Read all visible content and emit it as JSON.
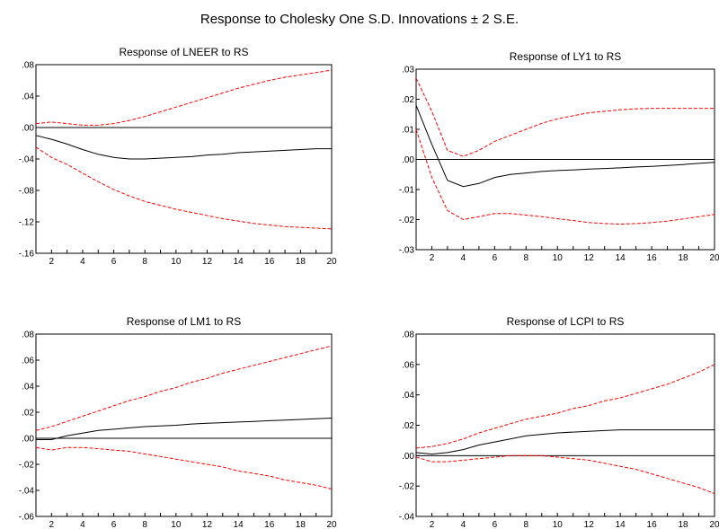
{
  "figure": {
    "title": "Response to Cholesky One S.D. Innovations ± 2 S.E."
  },
  "chart_data": [
    {
      "type": "line",
      "title": "Response of LNEER to RS",
      "xlabel": "",
      "ylabel": "",
      "xlim": [
        1,
        20
      ],
      "ylim": [
        -0.16,
        0.08
      ],
      "y_ticks": [
        0.08,
        0.04,
        0.0,
        -0.04,
        -0.08,
        -0.12,
        -0.16
      ],
      "y_tick_labels": [
        ".08",
        ".04",
        ".00",
        "-.04",
        "-.08",
        "-.12",
        "-.16"
      ],
      "x_ticks": [
        2,
        4,
        6,
        8,
        10,
        12,
        14,
        16,
        18,
        20
      ],
      "x_tick_labels": [
        "2",
        "4",
        "6",
        "8",
        "10",
        "12",
        "14",
        "16",
        "18",
        "20"
      ],
      "x": [
        1,
        2,
        3,
        4,
        5,
        6,
        7,
        8,
        9,
        10,
        11,
        12,
        13,
        14,
        15,
        16,
        17,
        18,
        19,
        20
      ],
      "series": [
        {
          "role": "response",
          "color": "#000000",
          "values": [
            -0.01,
            -0.015,
            -0.021,
            -0.028,
            -0.034,
            -0.038,
            -0.04,
            -0.04,
            -0.039,
            -0.038,
            -0.037,
            -0.035,
            -0.034,
            -0.032,
            -0.031,
            -0.03,
            -0.029,
            -0.028,
            -0.027,
            -0.027
          ]
        },
        {
          "role": "upper",
          "color": "#ff0000",
          "values": [
            0.005,
            0.007,
            0.005,
            0.003,
            0.003,
            0.005,
            0.009,
            0.014,
            0.02,
            0.026,
            0.032,
            0.038,
            0.044,
            0.05,
            0.055,
            0.06,
            0.064,
            0.067,
            0.07,
            0.073
          ]
        },
        {
          "role": "lower",
          "color": "#ff0000",
          "values": [
            -0.025,
            -0.038,
            -0.047,
            -0.058,
            -0.069,
            -0.079,
            -0.087,
            -0.094,
            -0.099,
            -0.104,
            -0.108,
            -0.112,
            -0.116,
            -0.119,
            -0.122,
            -0.124,
            -0.126,
            -0.127,
            -0.128,
            -0.129
          ]
        }
      ]
    },
    {
      "type": "line",
      "title": "Response of LY1 to RS",
      "xlabel": "",
      "ylabel": "",
      "xlim": [
        1,
        20
      ],
      "ylim": [
        -0.03,
        0.03
      ],
      "y_ticks": [
        0.03,
        0.02,
        0.01,
        0.0,
        -0.01,
        -0.02,
        -0.03
      ],
      "y_tick_labels": [
        ".03",
        ".02",
        ".01",
        ".00",
        "-.01",
        "-.02",
        "-.03"
      ],
      "x_ticks": [
        2,
        4,
        6,
        8,
        10,
        12,
        14,
        16,
        18,
        20
      ],
      "x_tick_labels": [
        "2",
        "4",
        "6",
        "8",
        "10",
        "12",
        "14",
        "16",
        "18",
        "20"
      ],
      "x": [
        1,
        2,
        3,
        4,
        5,
        6,
        7,
        8,
        9,
        10,
        11,
        12,
        13,
        14,
        15,
        16,
        17,
        18,
        19,
        20
      ],
      "series": [
        {
          "role": "response",
          "color": "#000000",
          "values": [
            0.018,
            0.005,
            -0.007,
            -0.009,
            -0.008,
            -0.006,
            -0.005,
            -0.0045,
            -0.004,
            -0.0037,
            -0.0035,
            -0.0032,
            -0.003,
            -0.0028,
            -0.0025,
            -0.0023,
            -0.002,
            -0.0017,
            -0.0013,
            -0.001
          ]
        },
        {
          "role": "upper",
          "color": "#ff0000",
          "values": [
            0.027,
            0.016,
            0.003,
            0.001,
            0.003,
            0.006,
            0.008,
            0.01,
            0.012,
            0.0135,
            0.0145,
            0.0155,
            0.016,
            0.0165,
            0.0168,
            0.017,
            0.017,
            0.017,
            0.017,
            0.017
          ]
        },
        {
          "role": "lower",
          "color": "#ff0000",
          "values": [
            0.01,
            -0.006,
            -0.017,
            -0.02,
            -0.019,
            -0.018,
            -0.018,
            -0.0185,
            -0.019,
            -0.0197,
            -0.0203,
            -0.021,
            -0.0213,
            -0.0215,
            -0.0213,
            -0.021,
            -0.0205,
            -0.0198,
            -0.019,
            -0.0183
          ]
        }
      ]
    },
    {
      "type": "line",
      "title": "Response of LM1 to RS",
      "xlabel": "",
      "ylabel": "",
      "xlim": [
        1,
        20
      ],
      "ylim": [
        -0.06,
        0.08
      ],
      "y_ticks": [
        0.08,
        0.06,
        0.04,
        0.02,
        0.0,
        -0.02,
        -0.04,
        -0.06
      ],
      "y_tick_labels": [
        ".08",
        ".06",
        ".04",
        ".02",
        ".00",
        "-.02",
        "-.04",
        "-.06"
      ],
      "x_ticks": [
        2,
        4,
        6,
        8,
        10,
        12,
        14,
        16,
        18,
        20
      ],
      "x_tick_labels": [
        "2",
        "4",
        "6",
        "8",
        "10",
        "12",
        "14",
        "16",
        "18",
        "20"
      ],
      "x": [
        1,
        2,
        3,
        4,
        5,
        6,
        7,
        8,
        9,
        10,
        11,
        12,
        13,
        14,
        15,
        16,
        17,
        18,
        19,
        20
      ],
      "series": [
        {
          "role": "response",
          "color": "#000000",
          "values": [
            -0.001,
            -0.001,
            0.002,
            0.004,
            0.006,
            0.007,
            0.008,
            0.009,
            0.0095,
            0.01,
            0.011,
            0.0115,
            0.012,
            0.0125,
            0.013,
            0.0135,
            0.014,
            0.0145,
            0.015,
            0.0155
          ]
        },
        {
          "role": "upper",
          "color": "#ff0000",
          "values": [
            0.006,
            0.009,
            0.013,
            0.017,
            0.021,
            0.025,
            0.029,
            0.032,
            0.036,
            0.039,
            0.043,
            0.046,
            0.05,
            0.053,
            0.056,
            0.059,
            0.062,
            0.065,
            0.068,
            0.071
          ]
        },
        {
          "role": "lower",
          "color": "#ff0000",
          "values": [
            -0.007,
            -0.009,
            -0.007,
            -0.007,
            -0.008,
            -0.009,
            -0.01,
            -0.012,
            -0.014,
            -0.016,
            -0.018,
            -0.02,
            -0.022,
            -0.025,
            -0.027,
            -0.029,
            -0.032,
            -0.034,
            -0.036,
            -0.039
          ]
        }
      ]
    },
    {
      "type": "line",
      "title": "Response of LCPI to RS",
      "xlabel": "",
      "ylabel": "",
      "xlim": [
        1,
        20
      ],
      "ylim": [
        -0.04,
        0.08
      ],
      "y_ticks": [
        0.08,
        0.06,
        0.04,
        0.02,
        0.0,
        -0.02,
        -0.04
      ],
      "y_tick_labels": [
        ".08",
        ".06",
        ".04",
        ".02",
        ".00",
        "-.02",
        "-.04"
      ],
      "x_ticks": [
        2,
        4,
        6,
        8,
        10,
        12,
        14,
        16,
        18,
        20
      ],
      "x_tick_labels": [
        "2",
        "4",
        "6",
        "8",
        "10",
        "12",
        "14",
        "16",
        "18",
        "20"
      ],
      "x": [
        1,
        2,
        3,
        4,
        5,
        6,
        7,
        8,
        9,
        10,
        11,
        12,
        13,
        14,
        15,
        16,
        17,
        18,
        19,
        20
      ],
      "series": [
        {
          "role": "response",
          "color": "#000000",
          "values": [
            0.002,
            0.001,
            0.002,
            0.004,
            0.007,
            0.009,
            0.011,
            0.013,
            0.014,
            0.015,
            0.0155,
            0.016,
            0.0165,
            0.017,
            0.017,
            0.017,
            0.017,
            0.017,
            0.017,
            0.017
          ]
        },
        {
          "role": "upper",
          "color": "#ff0000",
          "values": [
            0.005,
            0.006,
            0.008,
            0.011,
            0.015,
            0.018,
            0.021,
            0.024,
            0.026,
            0.028,
            0.031,
            0.033,
            0.036,
            0.038,
            0.041,
            0.044,
            0.047,
            0.051,
            0.055,
            0.06
          ]
        },
        {
          "role": "lower",
          "color": "#ff0000",
          "values": [
            -0.001,
            -0.004,
            -0.004,
            -0.003,
            -0.002,
            -0.001,
            0.0,
            0.0,
            0.0,
            -0.001,
            -0.002,
            -0.003,
            -0.005,
            -0.007,
            -0.009,
            -0.012,
            -0.015,
            -0.018,
            -0.021,
            -0.025
          ]
        }
      ]
    }
  ]
}
